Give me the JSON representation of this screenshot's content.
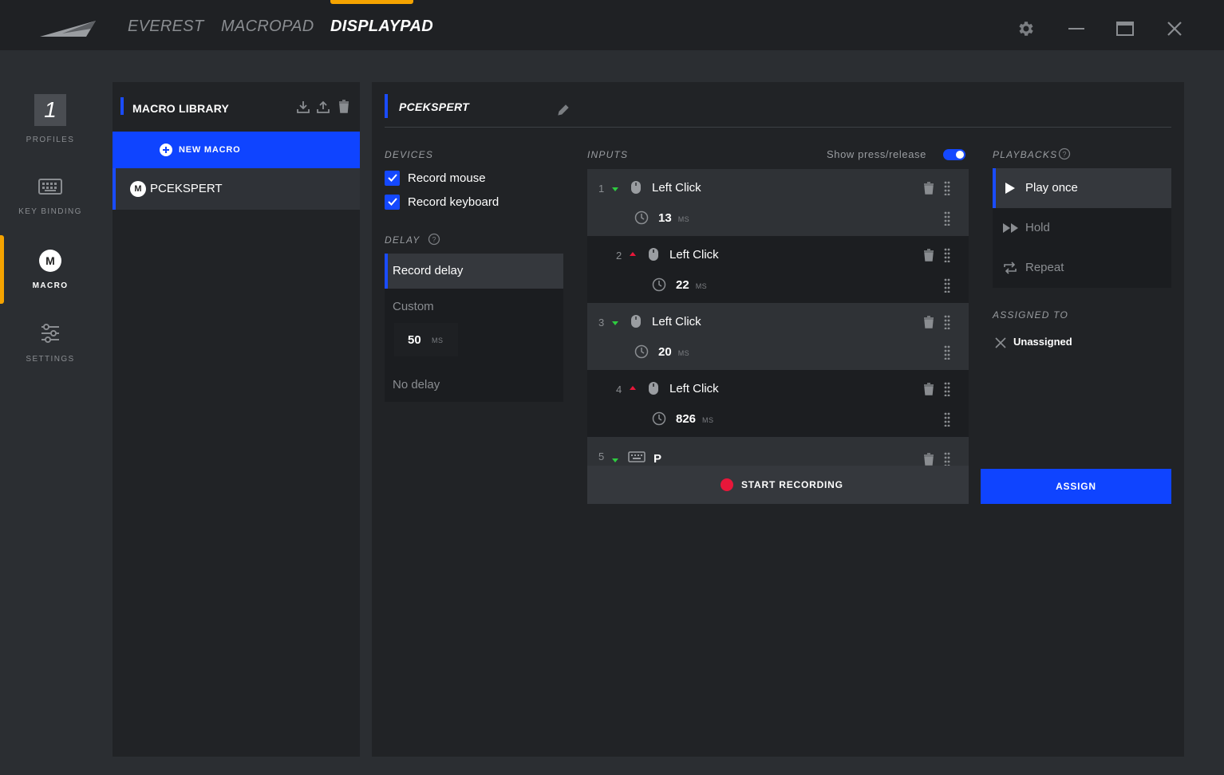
{
  "topbar": {
    "tabs": [
      "EVEREST",
      "MACROPAD",
      "DISPLAYPAD"
    ],
    "active_tab": "DISPLAYPAD",
    "accent_color": "#f5a300"
  },
  "nav": {
    "profile_number": "1",
    "items": [
      {
        "label": "PROFILES",
        "icon": "profile-number"
      },
      {
        "label": "KEY BINDING",
        "icon": "keyboard-icon"
      },
      {
        "label": "MACRO",
        "icon": "macro-m-icon",
        "badge": "M"
      },
      {
        "label": "SETTINGS",
        "icon": "sliders-icon"
      }
    ],
    "active_item": "MACRO"
  },
  "library": {
    "title": "MACRO LIBRARY",
    "new_macro_label": "NEW MACRO",
    "items": [
      {
        "badge": "M",
        "label": "PCEKSPERT"
      }
    ]
  },
  "editor": {
    "macro_name": "PCEKSPERT",
    "devices": {
      "label": "DEVICES",
      "options": [
        {
          "label": "Record mouse",
          "checked": true
        },
        {
          "label": "Record keyboard",
          "checked": true
        }
      ]
    },
    "delay": {
      "label": "DELAY",
      "options": [
        "Record delay",
        "Custom",
        "No delay"
      ],
      "selected": "Record delay",
      "custom_value": "50",
      "custom_unit": "MS"
    },
    "inputs": {
      "label": "INPUTS",
      "show_press_release_label": "Show press/release",
      "show_press_release": true,
      "rows": [
        {
          "num": "1",
          "direction": "down",
          "device": "mouse",
          "action": "Left Click",
          "delay": "13",
          "unit": "MS"
        },
        {
          "num": "2",
          "direction": "up",
          "device": "mouse",
          "action": "Left Click",
          "delay": "22",
          "unit": "MS"
        },
        {
          "num": "3",
          "direction": "down",
          "device": "mouse",
          "action": "Left Click",
          "delay": "20",
          "unit": "MS"
        },
        {
          "num": "4",
          "direction": "up",
          "device": "mouse",
          "action": "Left Click",
          "delay": "826",
          "unit": "MS"
        },
        {
          "num": "5",
          "direction": "down",
          "device": "keyboard",
          "action": "P",
          "delay": "",
          "unit": ""
        }
      ],
      "start_recording_label": "START RECORDING"
    },
    "playbacks": {
      "label": "PLAYBACKS",
      "options": [
        "Play once",
        "Hold",
        "Repeat"
      ],
      "selected": "Play once"
    },
    "assigned_to": {
      "label": "ASSIGNED TO",
      "value": "Unassigned"
    },
    "assign_label": "ASSIGN"
  },
  "colors": {
    "blue": "#0f44ff",
    "orange": "#f5a300",
    "record_red": "#e8173a",
    "arrow_down_green": "#2ecc40",
    "arrow_up_red": "#e8173a"
  }
}
